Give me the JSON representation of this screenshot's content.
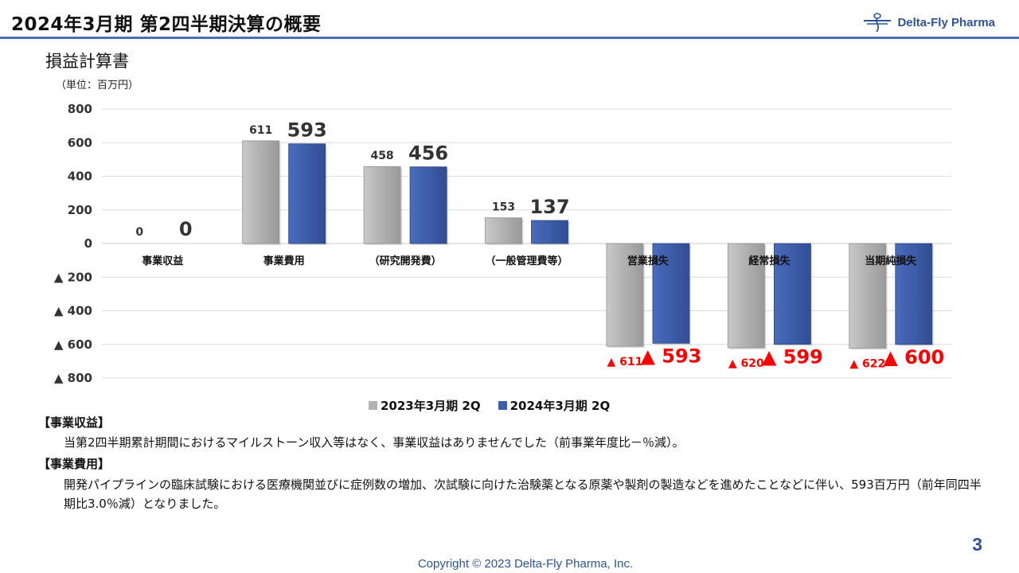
{
  "header": {
    "title": "2024年3月期 第2四半期決算の概要",
    "logo_text": "Delta-Fly Pharma",
    "accent_color": "#4a6fb5"
  },
  "section": {
    "subtitle": "損益計算書",
    "unit": "（単位：百万円）"
  },
  "chart_data": {
    "type": "bar",
    "categories": [
      "事業収益",
      "事業費用",
      "（研究開発費）",
      "（一般管理費等）",
      "営業損失",
      "経常損失",
      "当期純損失"
    ],
    "series": [
      {
        "name": "2023年3月期 2Q",
        "values": [
          0,
          611,
          458,
          153,
          -611,
          -620,
          -622
        ],
        "color": "#b3b3b3",
        "labels": [
          "0",
          "611",
          "458",
          "153",
          "▲ 611",
          "▲ 620",
          "▲ 622"
        ]
      },
      {
        "name": "2024年3月期 2Q",
        "values": [
          0,
          593,
          456,
          137,
          -593,
          -599,
          -600
        ],
        "color": "#3f5fae",
        "labels": [
          "0",
          "593",
          "456",
          "137",
          "▲ 593",
          "▲ 599",
          "▲ 600"
        ]
      }
    ],
    "ylim": [
      -800,
      800
    ],
    "yticks": [
      800,
      600,
      400,
      200,
      0,
      -200,
      -400,
      -600,
      -800
    ],
    "ytick_labels": [
      "800",
      "600",
      "400",
      "200",
      "0",
      "▲ 200",
      "▲ 400",
      "▲ 600",
      "▲ 800"
    ],
    "grid": true,
    "legend": "bottom-center",
    "negative_label_color": "#ff0000"
  },
  "notes": [
    {
      "heading": "【事業収益】",
      "text": "当第2四半期累計期間におけるマイルストーン収入等はなく、事業収益はありませんでした（前事業年度比－％減）。"
    },
    {
      "heading": "【事業費用】",
      "text": "開発パイプラインの臨床試験における医療機関並びに症例数の増加、次試験に向けた治験薬となる原薬や製剤の製造などを進めたことなどに伴い、593百万円（前年同四半期比3.0％減）となりました。"
    }
  ],
  "footer": {
    "page_number": "3",
    "copyright": "Copyright © 2023  Delta-Fly Pharma, Inc."
  }
}
